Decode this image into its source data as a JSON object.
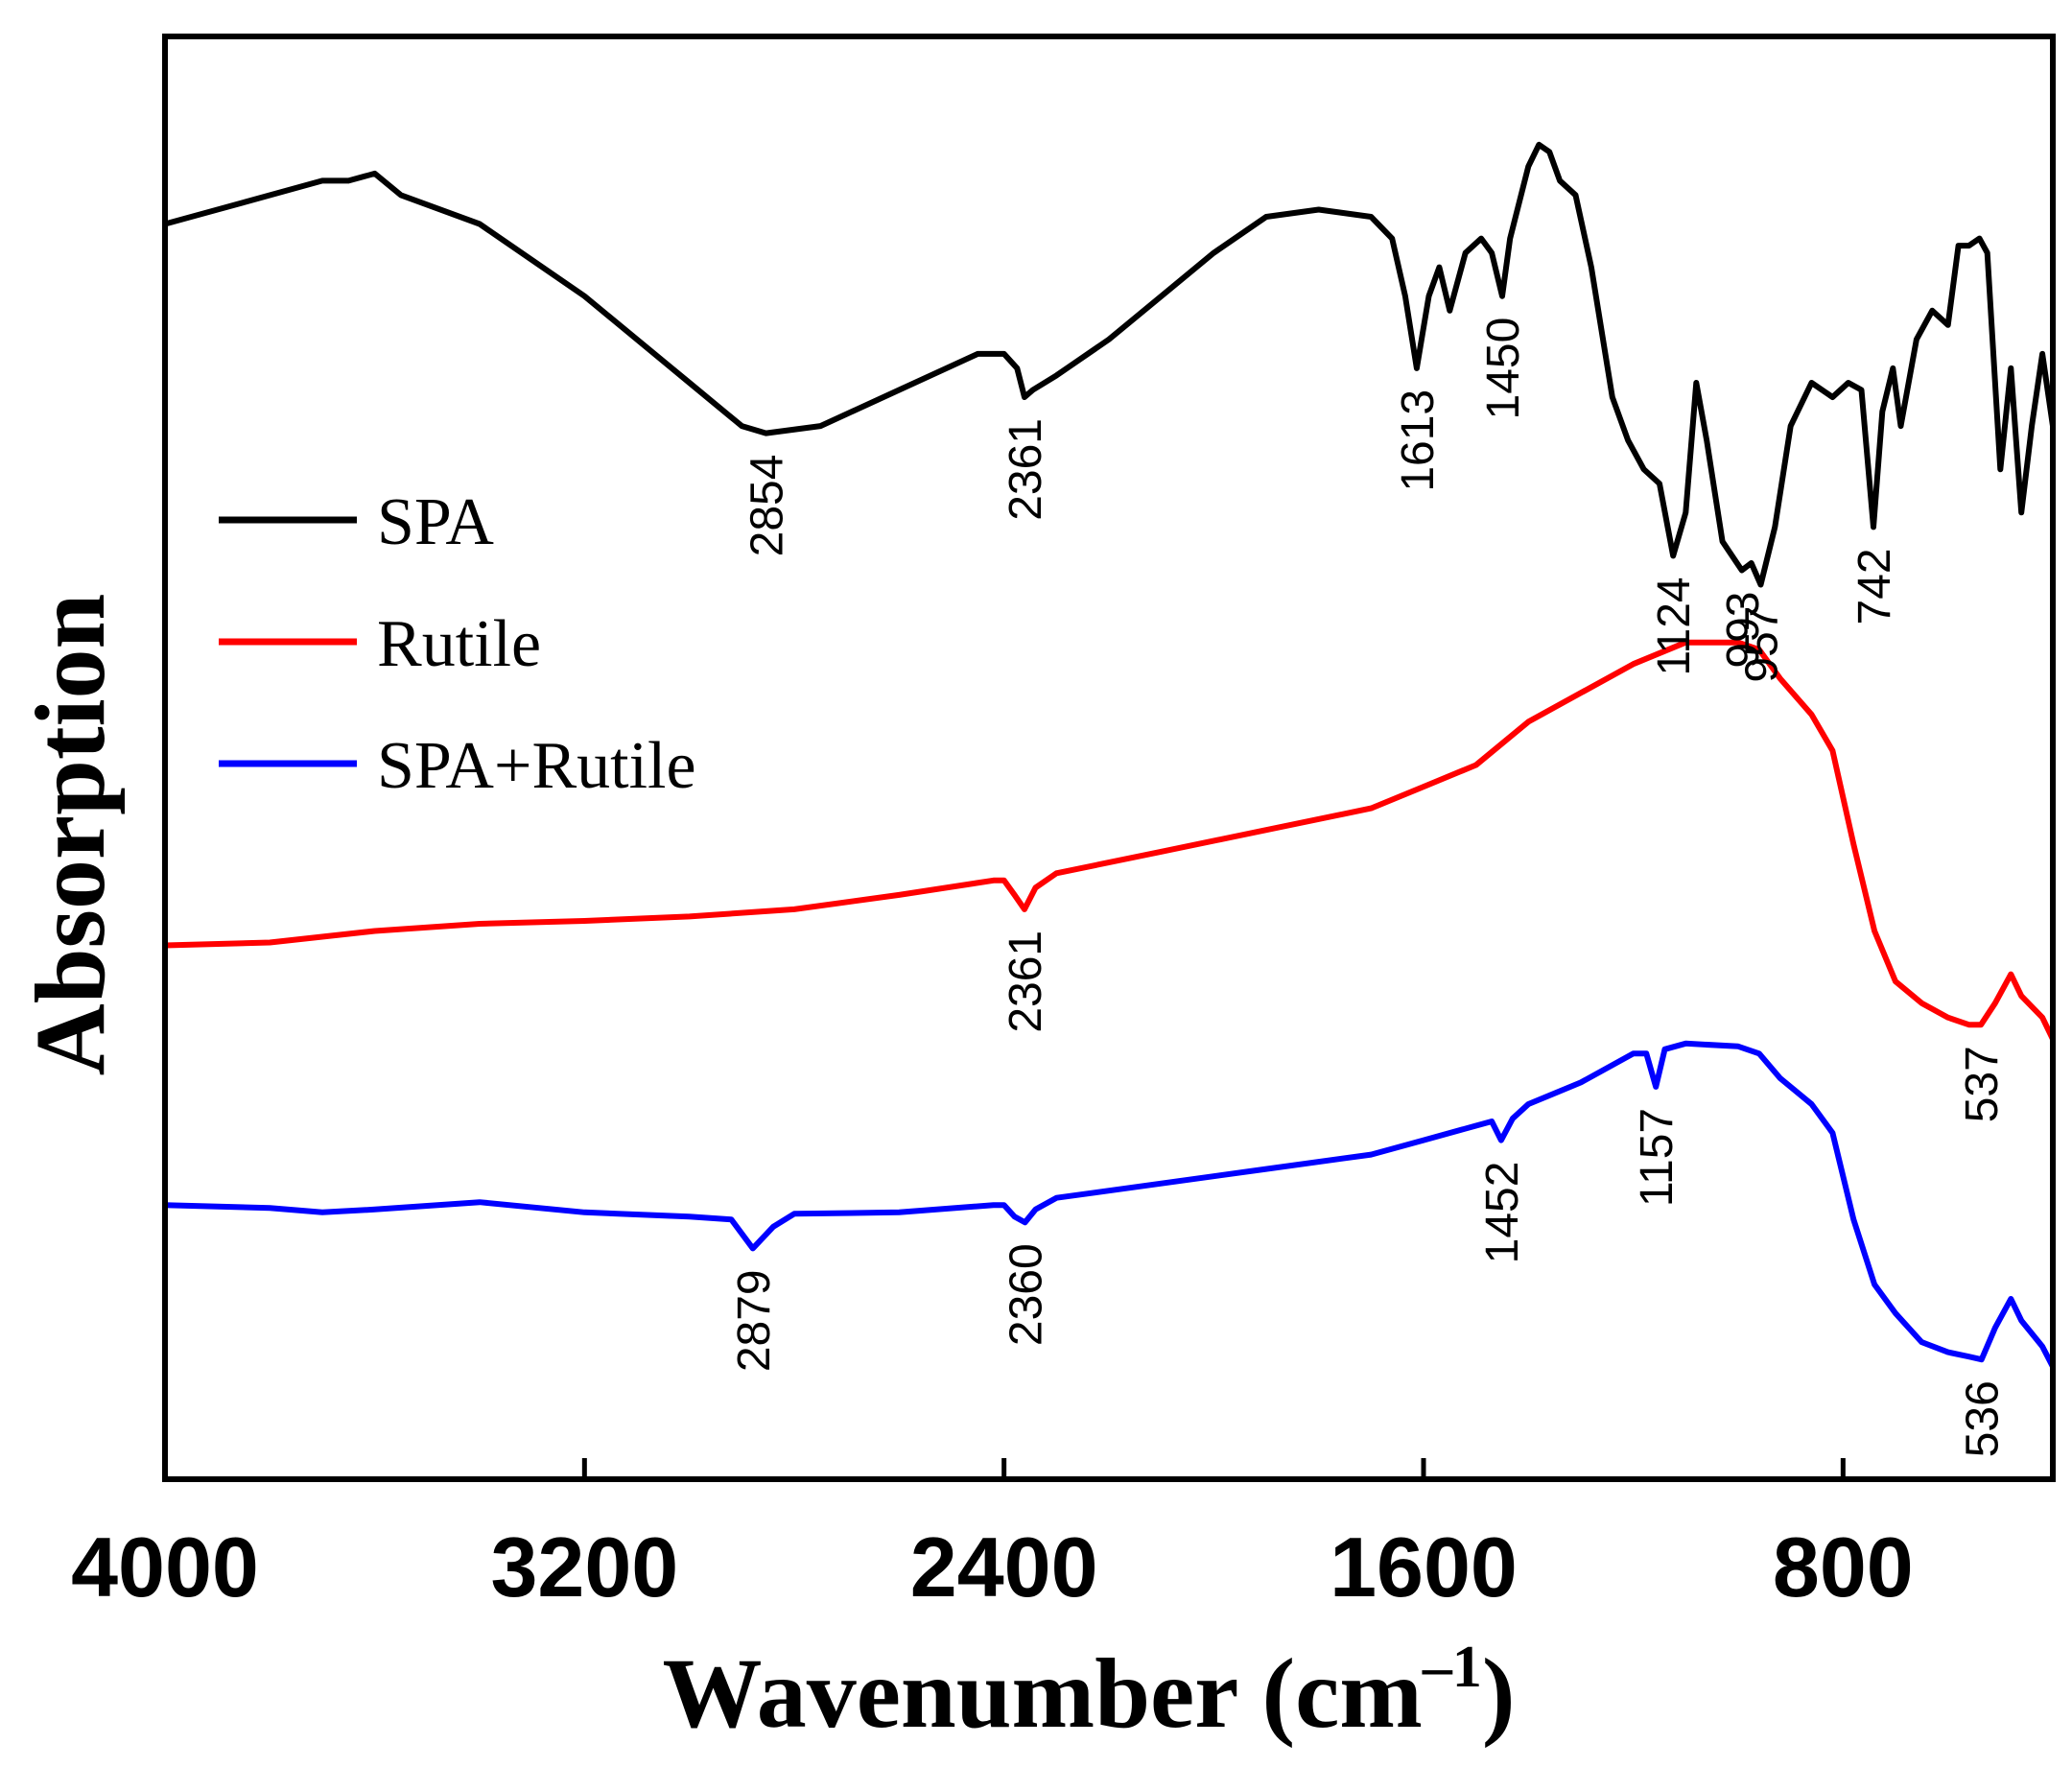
{
  "chart_data": {
    "type": "line",
    "title": "",
    "xlabel": "Wavenumber (cm",
    "xlabel_sup": "–1",
    "xlabel_close": ")",
    "ylabel": "Absorption",
    "xlim": [
      4000,
      400
    ],
    "ylim": [
      0,
      10
    ],
    "x_reversed": true,
    "grid": false,
    "legend_position": "left-middle",
    "x_ticks": [
      4000,
      3200,
      2400,
      1600,
      800
    ],
    "x_tick_labels": [
      "4000",
      "3200",
      "2400",
      "1600",
      "800"
    ],
    "y_ticks": [],
    "series": [
      {
        "name": "SPA",
        "color": "#000000",
        "points": [
          [
            4000,
            8.7
          ],
          [
            3900,
            8.8
          ],
          [
            3700,
            9.0
          ],
          [
            3650,
            9.0
          ],
          [
            3600,
            9.05
          ],
          [
            3550,
            8.9
          ],
          [
            3400,
            8.7
          ],
          [
            3200,
            8.2
          ],
          [
            3000,
            7.6
          ],
          [
            2900,
            7.3
          ],
          [
            2854,
            7.25
          ],
          [
            2750,
            7.3
          ],
          [
            2600,
            7.55
          ],
          [
            2450,
            7.8
          ],
          [
            2400,
            7.8
          ],
          [
            2375,
            7.7
          ],
          [
            2361,
            7.5
          ],
          [
            2345,
            7.55
          ],
          [
            2300,
            7.65
          ],
          [
            2200,
            7.9
          ],
          [
            2100,
            8.2
          ],
          [
            2000,
            8.5
          ],
          [
            1900,
            8.75
          ],
          [
            1800,
            8.8
          ],
          [
            1700,
            8.75
          ],
          [
            1660,
            8.6
          ],
          [
            1635,
            8.2
          ],
          [
            1613,
            7.7
          ],
          [
            1590,
            8.2
          ],
          [
            1570,
            8.4
          ],
          [
            1550,
            8.1
          ],
          [
            1520,
            8.5
          ],
          [
            1490,
            8.6
          ],
          [
            1470,
            8.5
          ],
          [
            1450,
            8.2
          ],
          [
            1435,
            8.6
          ],
          [
            1400,
            9.1
          ],
          [
            1380,
            9.25
          ],
          [
            1360,
            9.2
          ],
          [
            1340,
            9.0
          ],
          [
            1310,
            8.9
          ],
          [
            1280,
            8.4
          ],
          [
            1240,
            7.5
          ],
          [
            1210,
            7.2
          ],
          [
            1180,
            7.0
          ],
          [
            1150,
            6.9
          ],
          [
            1124,
            6.4
          ],
          [
            1100,
            6.7
          ],
          [
            1080,
            7.6
          ],
          [
            1060,
            7.2
          ],
          [
            1030,
            6.5
          ],
          [
            993,
            6.3
          ],
          [
            975,
            6.35
          ],
          [
            957,
            6.2
          ],
          [
            930,
            6.6
          ],
          [
            900,
            7.3
          ],
          [
            860,
            7.6
          ],
          [
            820,
            7.5
          ],
          [
            790,
            7.6
          ],
          [
            765,
            7.55
          ],
          [
            742,
            6.6
          ],
          [
            725,
            7.4
          ],
          [
            705,
            7.7
          ],
          [
            690,
            7.3
          ],
          [
            660,
            7.9
          ],
          [
            630,
            8.1
          ],
          [
            600,
            8.0
          ],
          [
            580,
            8.55
          ],
          [
            560,
            8.55
          ],
          [
            540,
            8.6
          ],
          [
            525,
            8.5
          ],
          [
            500,
            7.0
          ],
          [
            480,
            7.7
          ],
          [
            460,
            6.7
          ],
          [
            440,
            7.3
          ],
          [
            420,
            7.8
          ],
          [
            400,
            7.3
          ]
        ]
      },
      {
        "name": "Rutile",
        "color": "#ff0000",
        "points": [
          [
            4000,
            3.7
          ],
          [
            3800,
            3.72
          ],
          [
            3600,
            3.8
          ],
          [
            3400,
            3.85
          ],
          [
            3200,
            3.87
          ],
          [
            3000,
            3.9
          ],
          [
            2800,
            3.95
          ],
          [
            2600,
            4.05
          ],
          [
            2420,
            4.15
          ],
          [
            2400,
            4.15
          ],
          [
            2380,
            4.05
          ],
          [
            2361,
            3.95
          ],
          [
            2340,
            4.1
          ],
          [
            2300,
            4.2
          ],
          [
            2100,
            4.35
          ],
          [
            1900,
            4.5
          ],
          [
            1700,
            4.65
          ],
          [
            1600,
            4.8
          ],
          [
            1500,
            4.95
          ],
          [
            1400,
            5.25
          ],
          [
            1300,
            5.45
          ],
          [
            1200,
            5.65
          ],
          [
            1100,
            5.8
          ],
          [
            1000,
            5.8
          ],
          [
            960,
            5.75
          ],
          [
            920,
            5.55
          ],
          [
            860,
            5.3
          ],
          [
            820,
            5.05
          ],
          [
            780,
            4.4
          ],
          [
            740,
            3.8
          ],
          [
            700,
            3.45
          ],
          [
            650,
            3.3
          ],
          [
            600,
            3.2
          ],
          [
            560,
            3.15
          ],
          [
            537,
            3.15
          ],
          [
            510,
            3.3
          ],
          [
            480,
            3.5
          ],
          [
            460,
            3.35
          ],
          [
            420,
            3.2
          ],
          [
            400,
            3.05
          ]
        ]
      },
      {
        "name": "SPA+Rutile",
        "color": "#0000ff",
        "points": [
          [
            4000,
            1.9
          ],
          [
            3800,
            1.88
          ],
          [
            3700,
            1.85
          ],
          [
            3600,
            1.87
          ],
          [
            3400,
            1.92
          ],
          [
            3200,
            1.85
          ],
          [
            3000,
            1.82
          ],
          [
            2920,
            1.8
          ],
          [
            2879,
            1.6
          ],
          [
            2840,
            1.75
          ],
          [
            2800,
            1.84
          ],
          [
            2600,
            1.85
          ],
          [
            2420,
            1.9
          ],
          [
            2400,
            1.9
          ],
          [
            2380,
            1.82
          ],
          [
            2360,
            1.78
          ],
          [
            2340,
            1.87
          ],
          [
            2300,
            1.95
          ],
          [
            2100,
            2.05
          ],
          [
            1900,
            2.15
          ],
          [
            1700,
            2.25
          ],
          [
            1600,
            2.35
          ],
          [
            1500,
            2.45
          ],
          [
            1470,
            2.48
          ],
          [
            1452,
            2.35
          ],
          [
            1430,
            2.5
          ],
          [
            1400,
            2.6
          ],
          [
            1300,
            2.75
          ],
          [
            1200,
            2.95
          ],
          [
            1175,
            2.95
          ],
          [
            1157,
            2.72
          ],
          [
            1140,
            2.98
          ],
          [
            1100,
            3.02
          ],
          [
            1000,
            3.0
          ],
          [
            960,
            2.95
          ],
          [
            920,
            2.78
          ],
          [
            860,
            2.6
          ],
          [
            820,
            2.4
          ],
          [
            780,
            1.8
          ],
          [
            740,
            1.35
          ],
          [
            700,
            1.15
          ],
          [
            650,
            0.95
          ],
          [
            600,
            0.88
          ],
          [
            560,
            0.85
          ],
          [
            536,
            0.83
          ],
          [
            510,
            1.05
          ],
          [
            480,
            1.25
          ],
          [
            460,
            1.1
          ],
          [
            420,
            0.92
          ],
          [
            400,
            0.78
          ]
        ]
      }
    ],
    "annotations": [
      {
        "series": "SPA",
        "label": "2854",
        "x": 2854
      },
      {
        "series": "SPA",
        "label": "2361",
        "x": 2361
      },
      {
        "series": "SPA",
        "label": "1613",
        "x": 1613
      },
      {
        "series": "SPA",
        "label": "1450",
        "x": 1450
      },
      {
        "series": "SPA",
        "label": "1124",
        "x": 1124
      },
      {
        "series": "SPA",
        "label": "993",
        "x": 993
      },
      {
        "series": "SPA",
        "label": "957",
        "x": 957
      },
      {
        "series": "SPA",
        "label": "742",
        "x": 742
      },
      {
        "series": "Rutile",
        "label": "2361",
        "x": 2361
      },
      {
        "series": "Rutile",
        "label": "537",
        "x": 537
      },
      {
        "series": "SPA+Rutile",
        "label": "2879",
        "x": 2879
      },
      {
        "series": "SPA+Rutile",
        "label": "2360",
        "x": 2360
      },
      {
        "series": "SPA+Rutile",
        "label": "1452",
        "x": 1452
      },
      {
        "series": "SPA+Rutile",
        "label": "1157",
        "x": 1157
      },
      {
        "series": "SPA+Rutile",
        "label": "536",
        "x": 536
      }
    ]
  }
}
